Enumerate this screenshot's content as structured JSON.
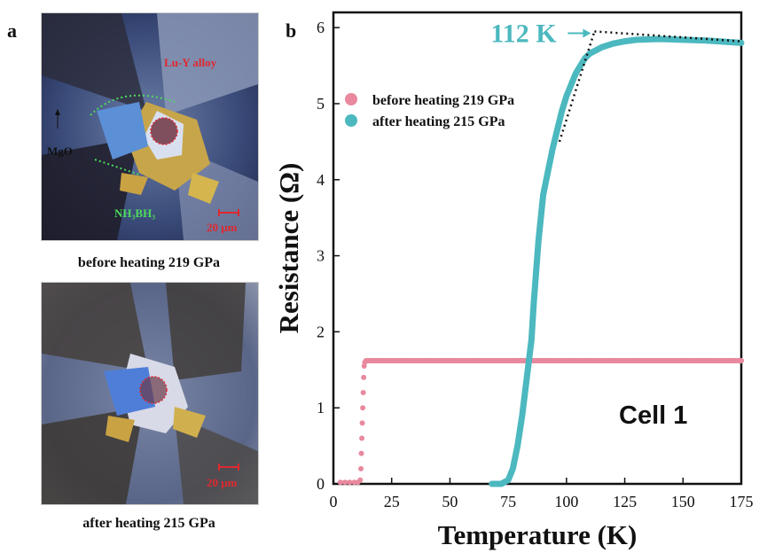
{
  "panel_a": {
    "letter": "a",
    "image_top": {
      "labels": {
        "alloy": "Lu-Y alloy",
        "mgo": "MgO",
        "nh3bh3": "NH₃BH₃",
        "scale": "20 μm"
      },
      "caption": "before heating 219 GPa"
    },
    "image_bottom": {
      "labels": {
        "scale": "20 μm"
      },
      "caption": "after heating 215 GPa"
    }
  },
  "panel_b": {
    "letter": "b"
  },
  "chart_data": {
    "type": "scatter",
    "xlabel": "Temperature (K)",
    "ylabel": "Resistance (Ω)",
    "xlim": [
      0,
      175
    ],
    "ylim": [
      0,
      6.2
    ],
    "xticks": [
      0,
      25,
      50,
      75,
      100,
      125,
      150,
      175
    ],
    "yticks": [
      0,
      1,
      2,
      3,
      4,
      5,
      6
    ],
    "legend_position": "upper-left",
    "annotation": {
      "text": "112 K",
      "x": 112,
      "y": 5.95
    },
    "cell_label": "Cell 1",
    "colors": {
      "before": "#e8899e",
      "after": "#4cb8bf",
      "fit": "#111111"
    },
    "series": [
      {
        "name": "before heating 219 GPa",
        "points": [
          [
            3,
            0.02
          ],
          [
            5,
            0.02
          ],
          [
            7,
            0.02
          ],
          [
            9,
            0.02
          ],
          [
            10.5,
            0.02
          ],
          [
            11.5,
            0.05
          ],
          [
            11.8,
            0.2
          ],
          [
            12.0,
            0.4
          ],
          [
            12.2,
            0.6
          ],
          [
            12.4,
            0.8
          ],
          [
            12.6,
            1.0
          ],
          [
            12.8,
            1.2
          ],
          [
            13.0,
            1.4
          ],
          [
            13.2,
            1.55
          ],
          [
            13.5,
            1.6
          ],
          [
            14,
            1.62
          ],
          [
            20,
            1.62
          ],
          [
            30,
            1.62
          ],
          [
            40,
            1.62
          ],
          [
            50,
            1.62
          ],
          [
            60,
            1.62
          ],
          [
            70,
            1.62
          ],
          [
            80,
            1.62
          ],
          [
            90,
            1.62
          ],
          [
            100,
            1.62
          ],
          [
            110,
            1.62
          ],
          [
            120,
            1.62
          ],
          [
            130,
            1.62
          ],
          [
            140,
            1.62
          ],
          [
            150,
            1.62
          ],
          [
            160,
            1.62
          ],
          [
            170,
            1.62
          ],
          [
            175,
            1.62
          ]
        ]
      },
      {
        "name": "after heating 215 GPa",
        "points": [
          [
            68,
            0
          ],
          [
            72,
            0
          ],
          [
            75,
            0.05
          ],
          [
            77,
            0.2
          ],
          [
            79,
            0.5
          ],
          [
            81,
            0.9
          ],
          [
            83,
            1.4
          ],
          [
            85,
            1.9
          ],
          [
            86,
            2.4
          ],
          [
            87,
            2.8
          ],
          [
            88,
            3.2
          ],
          [
            89,
            3.5
          ],
          [
            90,
            3.8
          ],
          [
            92,
            4.1
          ],
          [
            94,
            4.4
          ],
          [
            96,
            4.65
          ],
          [
            98,
            4.9
          ],
          [
            100,
            5.1
          ],
          [
            102,
            5.25
          ],
          [
            104,
            5.4
          ],
          [
            106,
            5.5
          ],
          [
            108,
            5.6
          ],
          [
            110,
            5.66
          ],
          [
            115,
            5.74
          ],
          [
            120,
            5.79
          ],
          [
            125,
            5.82
          ],
          [
            130,
            5.84
          ],
          [
            140,
            5.85
          ],
          [
            150,
            5.84
          ],
          [
            160,
            5.83
          ],
          [
            170,
            5.81
          ],
          [
            175,
            5.8
          ]
        ]
      }
    ],
    "fit_lines": [
      [
        [
          97,
          4.5
        ],
        [
          112,
          5.95
        ]
      ],
      [
        [
          112,
          5.95
        ],
        [
          175,
          5.82
        ]
      ]
    ]
  }
}
